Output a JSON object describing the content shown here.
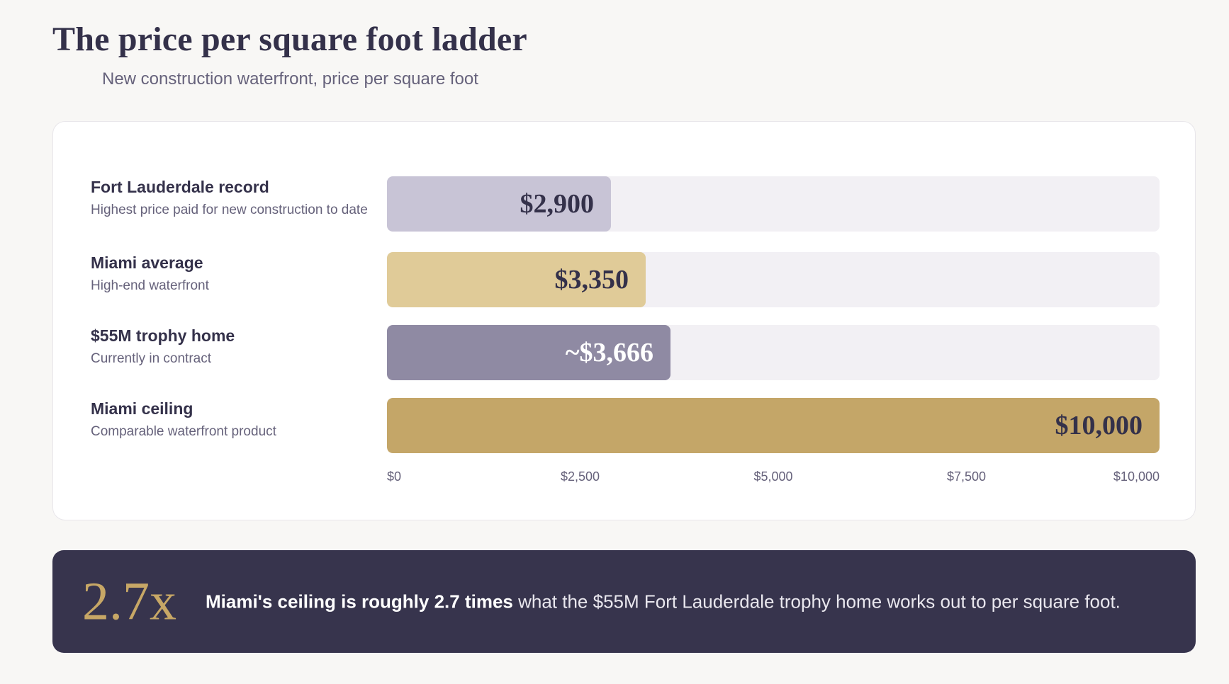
{
  "header": {
    "title": "The price per square foot ladder",
    "subtitle": "New construction waterfront, price per square foot"
  },
  "chart_data": {
    "type": "bar",
    "orientation": "horizontal",
    "categories": [
      "Fort Lauderdale record",
      "Miami average",
      "$55M trophy home",
      "Miami ceiling"
    ],
    "descriptions": [
      "Highest price paid for new construction to date",
      "High-end waterfront",
      "Currently in contract",
      "Comparable waterfront product"
    ],
    "values": [
      2900,
      3350,
      3666,
      10000
    ],
    "value_labels": [
      "$2,900",
      "$3,350",
      "~$3,666",
      "$10,000"
    ],
    "bar_colors": [
      "#c8c4d6",
      "#e0cb98",
      "#8f8aa3",
      "#c4a668"
    ],
    "label_colors": [
      "#34314a",
      "#34314a",
      "#ffffff",
      "#34314a"
    ],
    "xlim": [
      0,
      10000
    ],
    "xticks": [
      0,
      2500,
      5000,
      7500,
      10000
    ],
    "xtick_labels": [
      "$0",
      "$2,500",
      "$5,000",
      "$7,500",
      "$10,000"
    ],
    "grid": false,
    "legend": "none"
  },
  "callout": {
    "big": "2.7x",
    "strong": "Miami's ceiling is roughly 2.7 times",
    "rest": " what the $55M Fort Lauderdale trophy home works out to per square foot."
  },
  "colors": {
    "accent_gold": "#c7a766",
    "dark_navy": "#37344d",
    "track": "#f2f0f4"
  }
}
